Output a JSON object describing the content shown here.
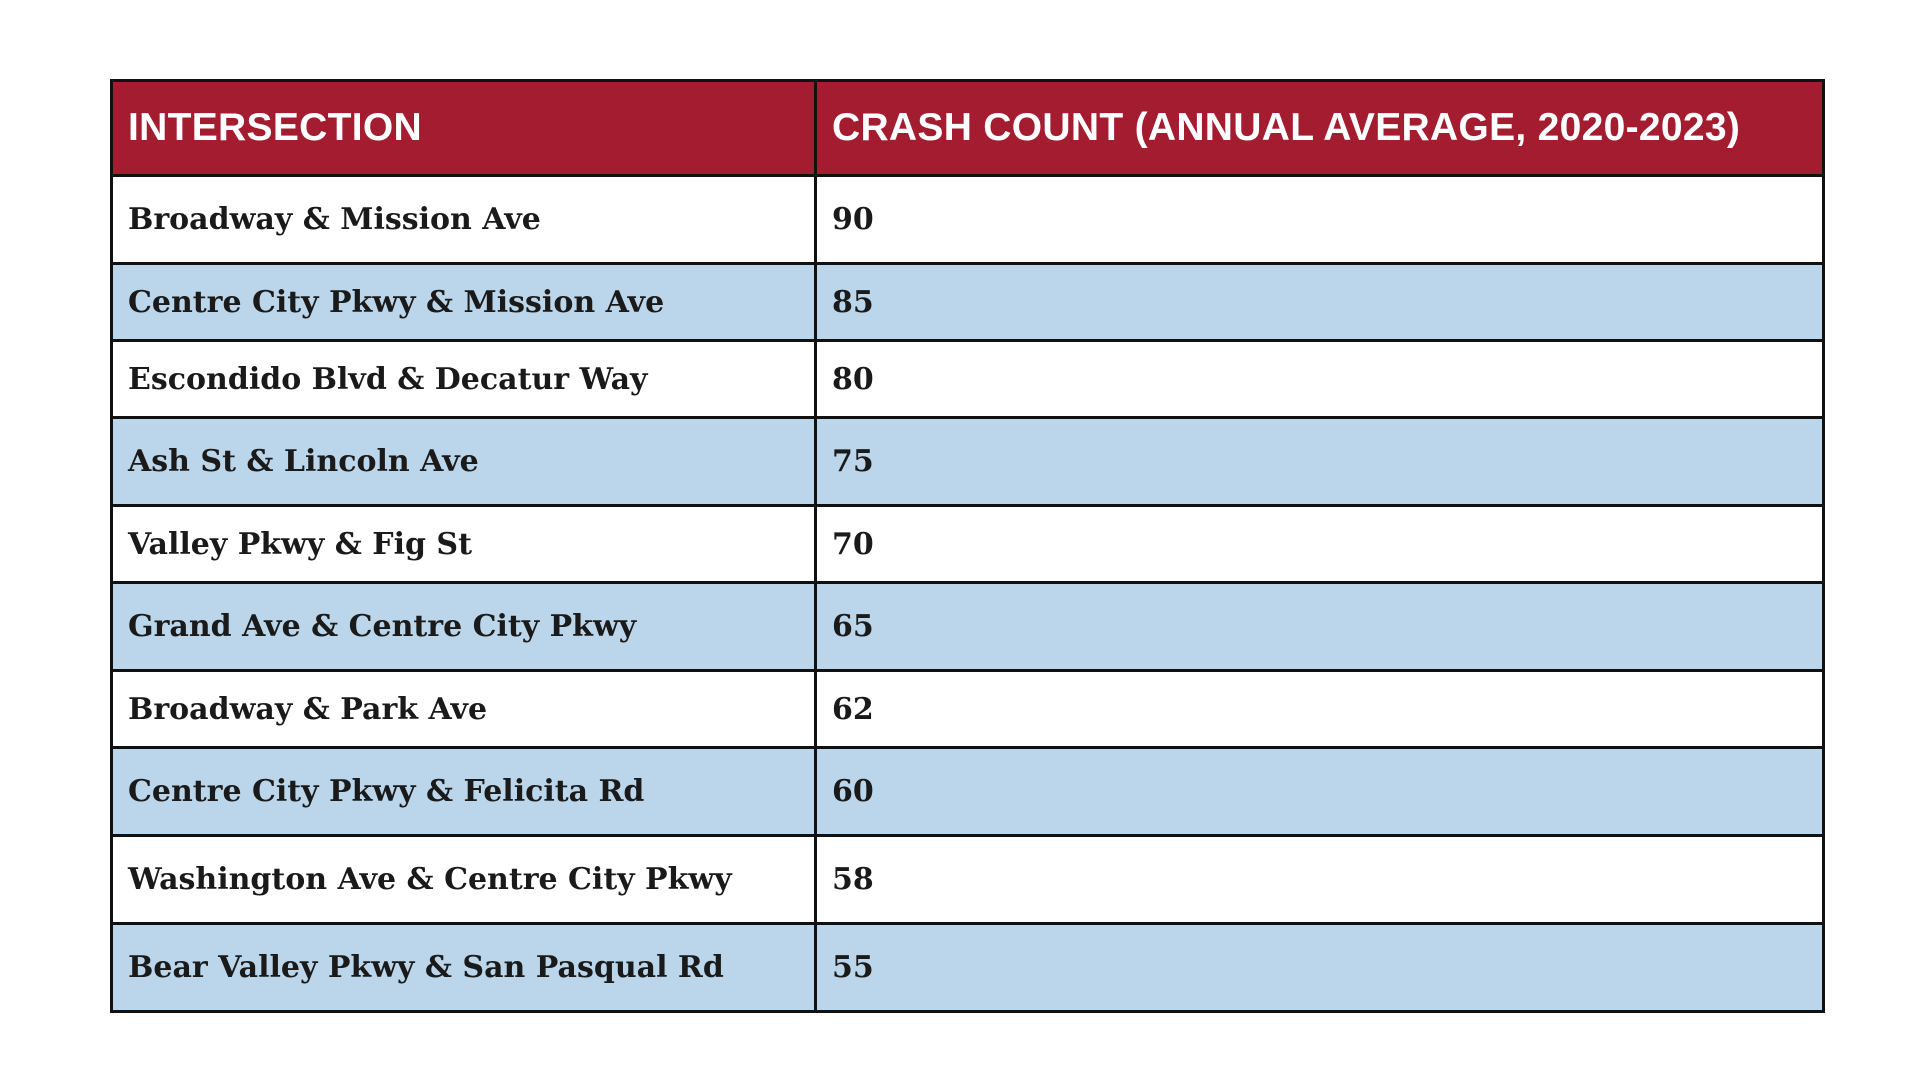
{
  "chart_data": {
    "type": "table",
    "columns": [
      "INTERSECTION",
      "CRASH COUNT (ANNUAL AVERAGE, 2020-2023)"
    ],
    "rows": [
      {
        "intersection": "Broadway & Mission Ave",
        "crash_count": "90"
      },
      {
        "intersection": "Centre City Pkwy & Mission Ave",
        "crash_count": "85"
      },
      {
        "intersection": "Escondido Blvd & Decatur Way",
        "crash_count": "80"
      },
      {
        "intersection": "Ash St & Lincoln Ave",
        "crash_count": "75"
      },
      {
        "intersection": "Valley Pkwy & Fig St",
        "crash_count": "70"
      },
      {
        "intersection": "Grand Ave & Centre City Pkwy",
        "crash_count": "65"
      },
      {
        "intersection": "Broadway & Park Ave",
        "crash_count": "62"
      },
      {
        "intersection": "Centre City Pkwy & Felicita Rd",
        "crash_count": "60"
      },
      {
        "intersection": "Washington Ave & Centre City Pkwy",
        "crash_count": "58"
      },
      {
        "intersection": "Bear Valley Pkwy & San Pasqual Rd",
        "crash_count": "55"
      }
    ]
  },
  "colors": {
    "header_background": "#a31c2f",
    "header_text": "#ffffff",
    "row_odd": "#ffffff",
    "row_even": "#bbd6ea",
    "border": "#111111"
  }
}
